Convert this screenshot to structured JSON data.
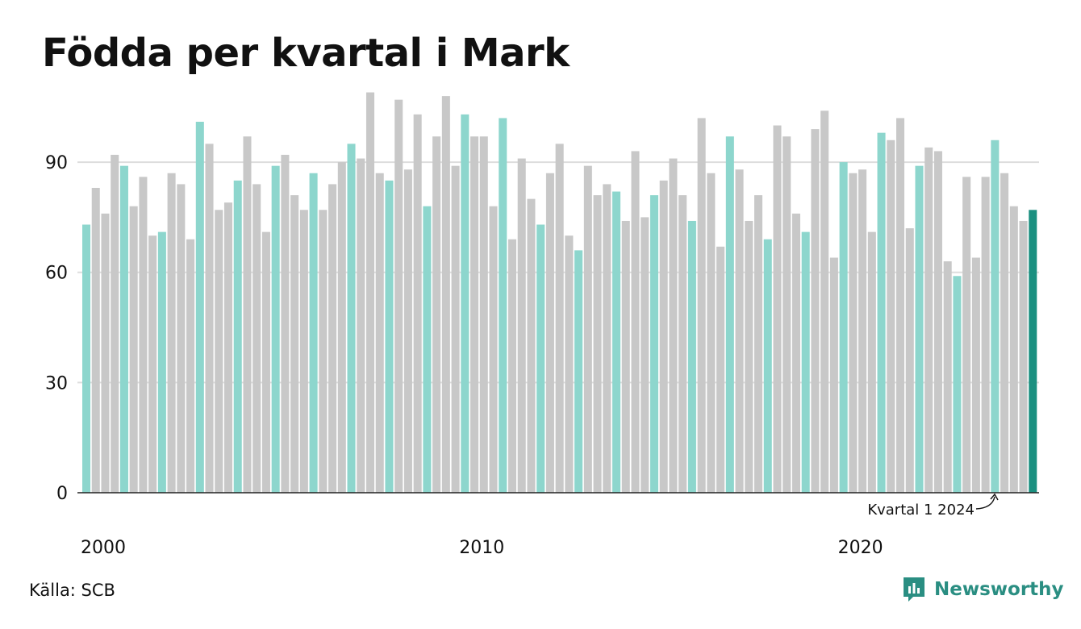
{
  "title": "Födda per kvartal i Mark",
  "source": "Källa: SCB",
  "brand": "Newsworthy",
  "colors": {
    "q1": "#8dd6cd",
    "other": "#c8c8c8",
    "latest": "#1b9080",
    "grid": "#dddddd",
    "axis": "#222222",
    "brand": "#2a8e82"
  },
  "chart_data": {
    "type": "bar",
    "start_year": 2000,
    "x_tick_labels": [
      "2000",
      "2010",
      "2020"
    ],
    "y_ticks": [
      0,
      30,
      60,
      90
    ],
    "ylim": [
      0,
      110
    ],
    "grid": true,
    "annotation": "Kvartal 1 2024",
    "values": [
      73,
      83,
      76,
      92,
      89,
      78,
      86,
      70,
      71,
      87,
      84,
      69,
      101,
      95,
      77,
      79,
      85,
      97,
      84,
      71,
      89,
      92,
      81,
      77,
      87,
      77,
      84,
      90,
      95,
      91,
      109,
      87,
      85,
      107,
      88,
      103,
      78,
      97,
      108,
      89,
      103,
      97,
      97,
      78,
      102,
      69,
      91,
      80,
      73,
      87,
      95,
      70,
      66,
      89,
      81,
      84,
      82,
      74,
      93,
      75,
      81,
      85,
      91,
      81,
      74,
      102,
      87,
      67,
      97,
      88,
      74,
      81,
      69,
      100,
      97,
      76,
      71,
      99,
      104,
      64,
      90,
      87,
      88,
      71,
      98,
      96,
      102,
      72,
      89,
      94,
      93,
      63,
      59,
      86,
      64,
      86,
      96,
      87,
      78,
      74,
      77
    ]
  }
}
